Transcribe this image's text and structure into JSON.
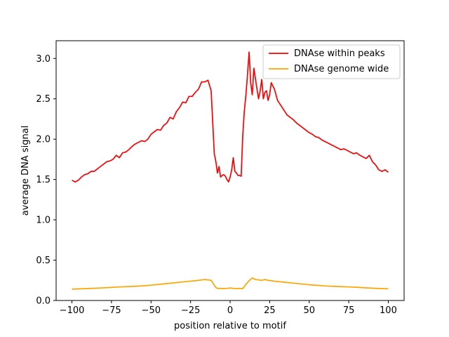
{
  "chart_data": {
    "type": "line",
    "title": "",
    "xlabel": "position relative to motif",
    "ylabel": "average DNA signal",
    "xlim": [
      -110,
      110
    ],
    "ylim": [
      0,
      3.22
    ],
    "xticks": [
      -100,
      -75,
      -50,
      -25,
      0,
      25,
      50,
      75,
      100
    ],
    "xtick_labels": [
      "−100",
      "−75",
      "−50",
      "−25",
      "0",
      "25",
      "50",
      "75",
      "100"
    ],
    "yticks": [
      0.0,
      0.5,
      1.0,
      1.5,
      2.0,
      2.5,
      3.0
    ],
    "ytick_labels": [
      "0.0",
      "0.5",
      "1.0",
      "1.5",
      "2.0",
      "2.5",
      "3.0"
    ],
    "grid": false,
    "legend_position": "top-right",
    "series": [
      {
        "name": "DNAse within peaks",
        "color": "#ff0000",
        "x": [
          -100,
          -98,
          -96,
          -94,
          -92,
          -90,
          -88,
          -86,
          -84,
          -82,
          -80,
          -78,
          -76,
          -74,
          -72,
          -70,
          -68,
          -66,
          -64,
          -62,
          -60,
          -58,
          -56,
          -54,
          -52,
          -50,
          -48,
          -46,
          -44,
          -42,
          -40,
          -38,
          -36,
          -34,
          -32,
          -30,
          -28,
          -26,
          -24,
          -22,
          -20,
          -18,
          -16,
          -14,
          -12,
          -10,
          -9,
          -8,
          -7,
          -6,
          -5,
          -4,
          -3,
          -2,
          -1,
          0,
          1,
          2,
          3,
          4,
          5,
          6,
          7,
          8,
          9,
          10,
          11,
          12,
          13,
          14,
          15,
          16,
          17,
          18,
          19,
          20,
          21,
          22,
          23,
          24,
          25,
          26,
          28,
          30,
          32,
          34,
          36,
          38,
          40,
          42,
          44,
          46,
          48,
          50,
          52,
          54,
          56,
          58,
          60,
          62,
          64,
          66,
          68,
          70,
          72,
          74,
          76,
          78,
          80,
          82,
          84,
          86,
          88,
          90,
          92,
          94,
          96,
          98,
          100
        ],
        "values": [
          1.49,
          1.47,
          1.49,
          1.53,
          1.56,
          1.57,
          1.6,
          1.6,
          1.63,
          1.66,
          1.69,
          1.72,
          1.73,
          1.75,
          1.8,
          1.77,
          1.83,
          1.84,
          1.87,
          1.91,
          1.94,
          1.96,
          1.98,
          1.97,
          2.0,
          2.06,
          2.09,
          2.12,
          2.11,
          2.17,
          2.2,
          2.27,
          2.25,
          2.34,
          2.39,
          2.46,
          2.45,
          2.53,
          2.53,
          2.58,
          2.62,
          2.71,
          2.71,
          2.73,
          2.6,
          1.82,
          1.72,
          1.58,
          1.66,
          1.53,
          1.55,
          1.56,
          1.54,
          1.5,
          1.47,
          1.53,
          1.62,
          1.77,
          1.6,
          1.58,
          1.55,
          1.55,
          1.54,
          2.05,
          2.35,
          2.55,
          2.8,
          3.08,
          2.7,
          2.55,
          2.88,
          2.75,
          2.62,
          2.5,
          2.6,
          2.74,
          2.5,
          2.58,
          2.6,
          2.48,
          2.55,
          2.7,
          2.62,
          2.48,
          2.42,
          2.36,
          2.3,
          2.27,
          2.24,
          2.2,
          2.17,
          2.14,
          2.11,
          2.08,
          2.06,
          2.03,
          2.02,
          1.99,
          1.97,
          1.95,
          1.93,
          1.91,
          1.89,
          1.87,
          1.88,
          1.86,
          1.84,
          1.82,
          1.83,
          1.8,
          1.78,
          1.76,
          1.8,
          1.72,
          1.68,
          1.62,
          1.6,
          1.62,
          1.59
        ]
      },
      {
        "name": "DNAse genome wide",
        "color": "#ffa500",
        "x": [
          -100,
          -95,
          -90,
          -85,
          -80,
          -75,
          -70,
          -65,
          -60,
          -55,
          -50,
          -45,
          -40,
          -35,
          -30,
          -25,
          -22,
          -20,
          -18,
          -16,
          -14,
          -12,
          -10,
          -9,
          -8,
          -6,
          -4,
          -2,
          0,
          2,
          4,
          6,
          8,
          10,
          12,
          14,
          16,
          18,
          20,
          22,
          24,
          26,
          28,
          30,
          35,
          40,
          45,
          50,
          55,
          60,
          65,
          70,
          75,
          80,
          85,
          90,
          95,
          100
        ],
        "values": [
          0.14,
          0.145,
          0.148,
          0.152,
          0.157,
          0.162,
          0.168,
          0.172,
          0.176,
          0.182,
          0.19,
          0.2,
          0.21,
          0.22,
          0.23,
          0.24,
          0.245,
          0.25,
          0.255,
          0.26,
          0.255,
          0.25,
          0.19,
          0.16,
          0.15,
          0.15,
          0.148,
          0.15,
          0.155,
          0.15,
          0.148,
          0.15,
          0.148,
          0.2,
          0.245,
          0.28,
          0.26,
          0.255,
          0.25,
          0.26,
          0.25,
          0.245,
          0.24,
          0.235,
          0.225,
          0.215,
          0.205,
          0.195,
          0.188,
          0.18,
          0.176,
          0.172,
          0.168,
          0.164,
          0.158,
          0.152,
          0.148,
          0.145
        ]
      }
    ]
  }
}
